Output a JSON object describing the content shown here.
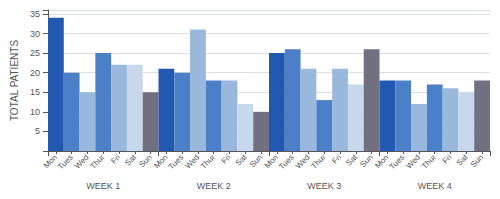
{
  "chart_data": {
    "type": "bar",
    "categories": [
      "WEEK 1",
      "WEEK 2",
      "WEEK 3",
      "WEEK 4"
    ],
    "series": [
      {
        "name": "Mon",
        "color": "#2258b0",
        "values": [
          34,
          21,
          25,
          18
        ]
      },
      {
        "name": "Tues",
        "color": "#4b80c8",
        "values": [
          20,
          20,
          26,
          18
        ]
      },
      {
        "name": "Wed",
        "color": "#9ab8dc",
        "values": [
          15,
          31,
          21,
          12
        ]
      },
      {
        "name": "Thur",
        "color": "#4b80c8",
        "values": [
          25,
          18,
          13,
          17
        ]
      },
      {
        "name": "Fri",
        "color": "#9ab8dc",
        "values": [
          22,
          18,
          21,
          16
        ]
      },
      {
        "name": "Sat",
        "color": "#c8d8ec",
        "values": [
          22,
          12,
          17,
          15
        ]
      },
      {
        "name": "Sun",
        "color": "#707080",
        "values": [
          15,
          10,
          26,
          18
        ]
      }
    ],
    "ylabel": "TOTAL PATIENTS",
    "ylim": [
      0,
      36
    ],
    "yticks": [
      5,
      10,
      15,
      20,
      25,
      30,
      35
    ],
    "grid": true
  }
}
